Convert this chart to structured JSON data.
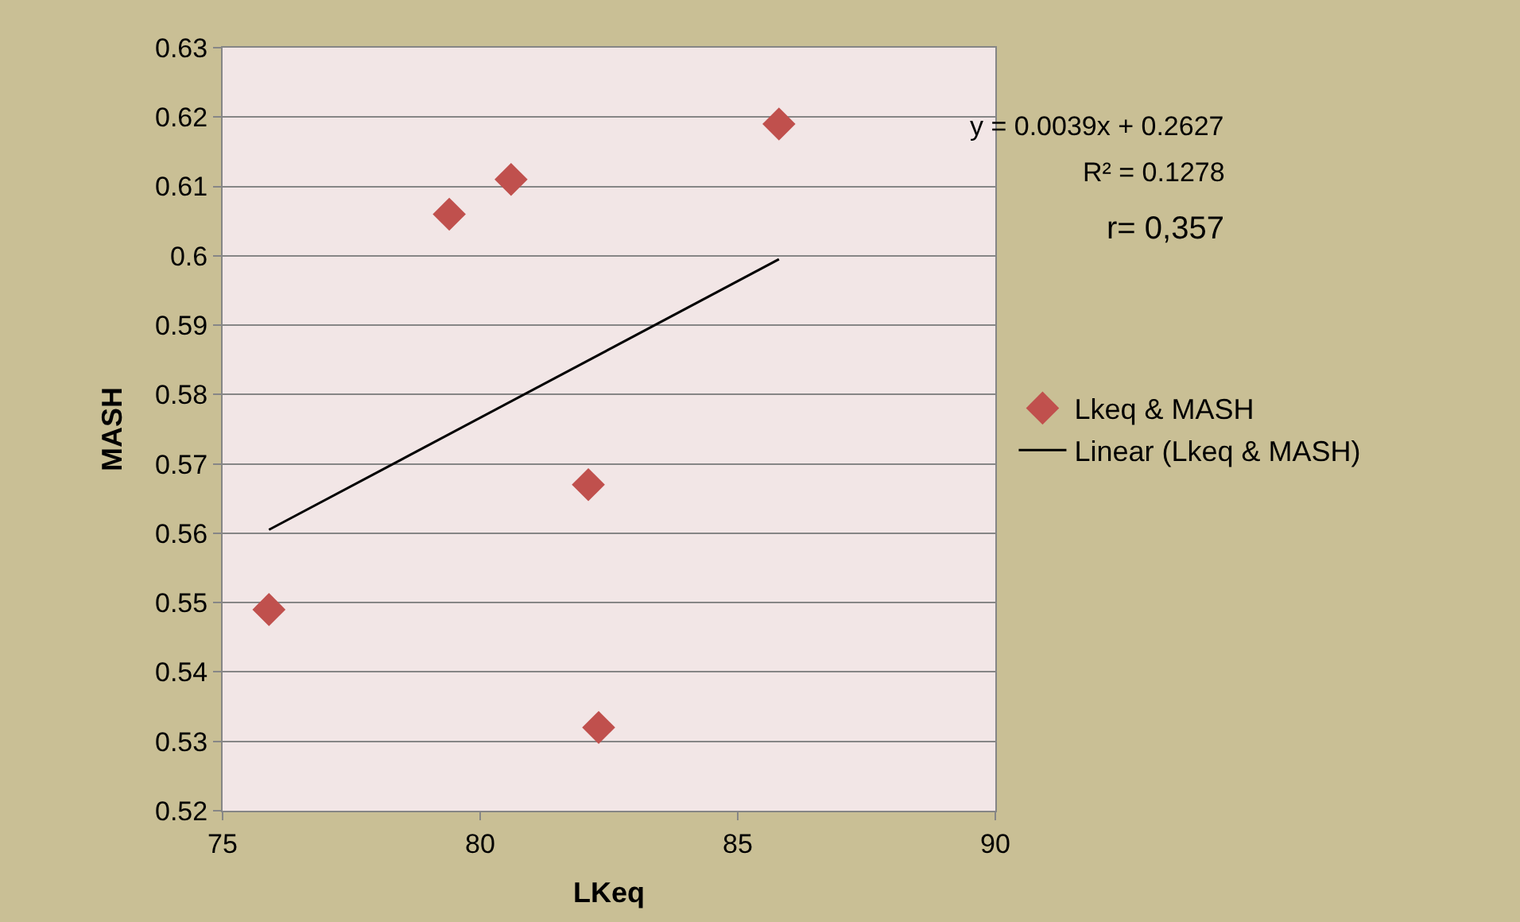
{
  "chart_data": {
    "type": "scatter",
    "xlabel": "LKeq",
    "ylabel": "MASH",
    "xlim": [
      75,
      90
    ],
    "xticks": [
      75,
      80,
      85,
      90
    ],
    "ylim": [
      0.52,
      0.63
    ],
    "yticks": [
      0.52,
      0.53,
      0.54,
      0.55,
      0.56,
      0.57,
      0.58,
      0.59,
      0.6,
      0.61,
      0.62,
      0.63
    ],
    "grid": "y",
    "legend": "right",
    "series": [
      {
        "name": "Lkeq & MASH",
        "marker": "diamond",
        "color": "#c0504d",
        "x": [
          75.9,
          79.4,
          80.6,
          82.1,
          82.3,
          85.8
        ],
        "values": [
          0.549,
          0.606,
          0.611,
          0.567,
          0.532,
          0.619
        ]
      },
      {
        "name": "Linear (Lkeq & MASH)",
        "type": "line",
        "color": "#000000",
        "line_style": "solid",
        "x": [
          75.9,
          85.8
        ],
        "values": [
          0.5605,
          0.5995
        ]
      }
    ],
    "annotations": [
      "y = 0.0039x + 0.2627",
      "R² = 0.1278",
      "r= 0,357"
    ]
  }
}
